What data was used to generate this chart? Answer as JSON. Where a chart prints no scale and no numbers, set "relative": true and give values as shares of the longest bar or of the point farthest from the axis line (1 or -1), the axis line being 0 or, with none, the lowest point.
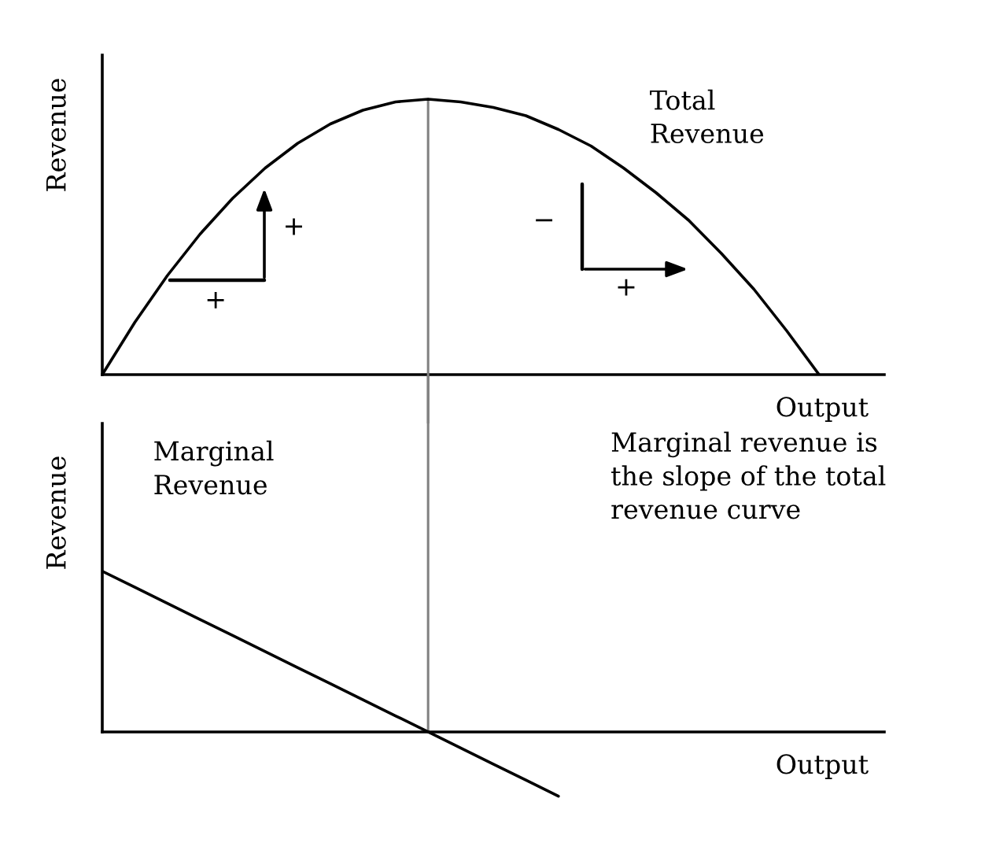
{
  "chart_data": [
    {
      "type": "line",
      "relative": true,
      "xlabel": "Output",
      "ylabel": "Revenue",
      "categories": [
        null,
        null,
        null,
        null,
        null,
        null,
        null,
        null,
        null,
        null,
        null,
        null,
        null,
        null,
        null,
        null,
        null,
        null,
        null,
        null,
        null,
        null,
        null,
        null,
        null
      ],
      "series": [
        {
          "name": "Total\nRevenue",
          "color": "#000000",
          "values": [
            0,
            0.19,
            0.36,
            0.51,
            0.64,
            0.75,
            0.84,
            0.91,
            0.96,
            0.99,
            1,
            0.99,
            0.97,
            0.94,
            0.89,
            0.83,
            0.75,
            0.66,
            0.56,
            0.44,
            0.31,
            0.16,
            0,
            null,
            null
          ]
        }
      ],
      "annotations": [
        "+",
        "+",
        "−",
        "+"
      ]
    },
    {
      "type": "line",
      "relative": true,
      "xlabel": "Output",
      "ylabel": "Revenue",
      "categories": [
        null,
        null,
        null,
        null,
        null,
        null,
        null,
        null,
        null,
        null,
        null,
        null,
        null,
        null,
        null,
        null,
        null,
        null,
        null,
        null,
        null,
        null,
        null,
        null,
        null
      ],
      "series": [
        {
          "name": "Marginal\nRevenue",
          "color": "#000000",
          "values": [
            1,
            0.9,
            0.8,
            0.7,
            0.6,
            0.5,
            0.4,
            0.3,
            0.2,
            0.1,
            0,
            -0.1,
            -0.2,
            -0.3,
            -0.4,
            null,
            null,
            null,
            null,
            null,
            null,
            null,
            null,
            null,
            null
          ]
        }
      ],
      "annotations": [
        "Marginal revenue is\nthe slope of the total\nrevenue curve"
      ]
    }
  ]
}
